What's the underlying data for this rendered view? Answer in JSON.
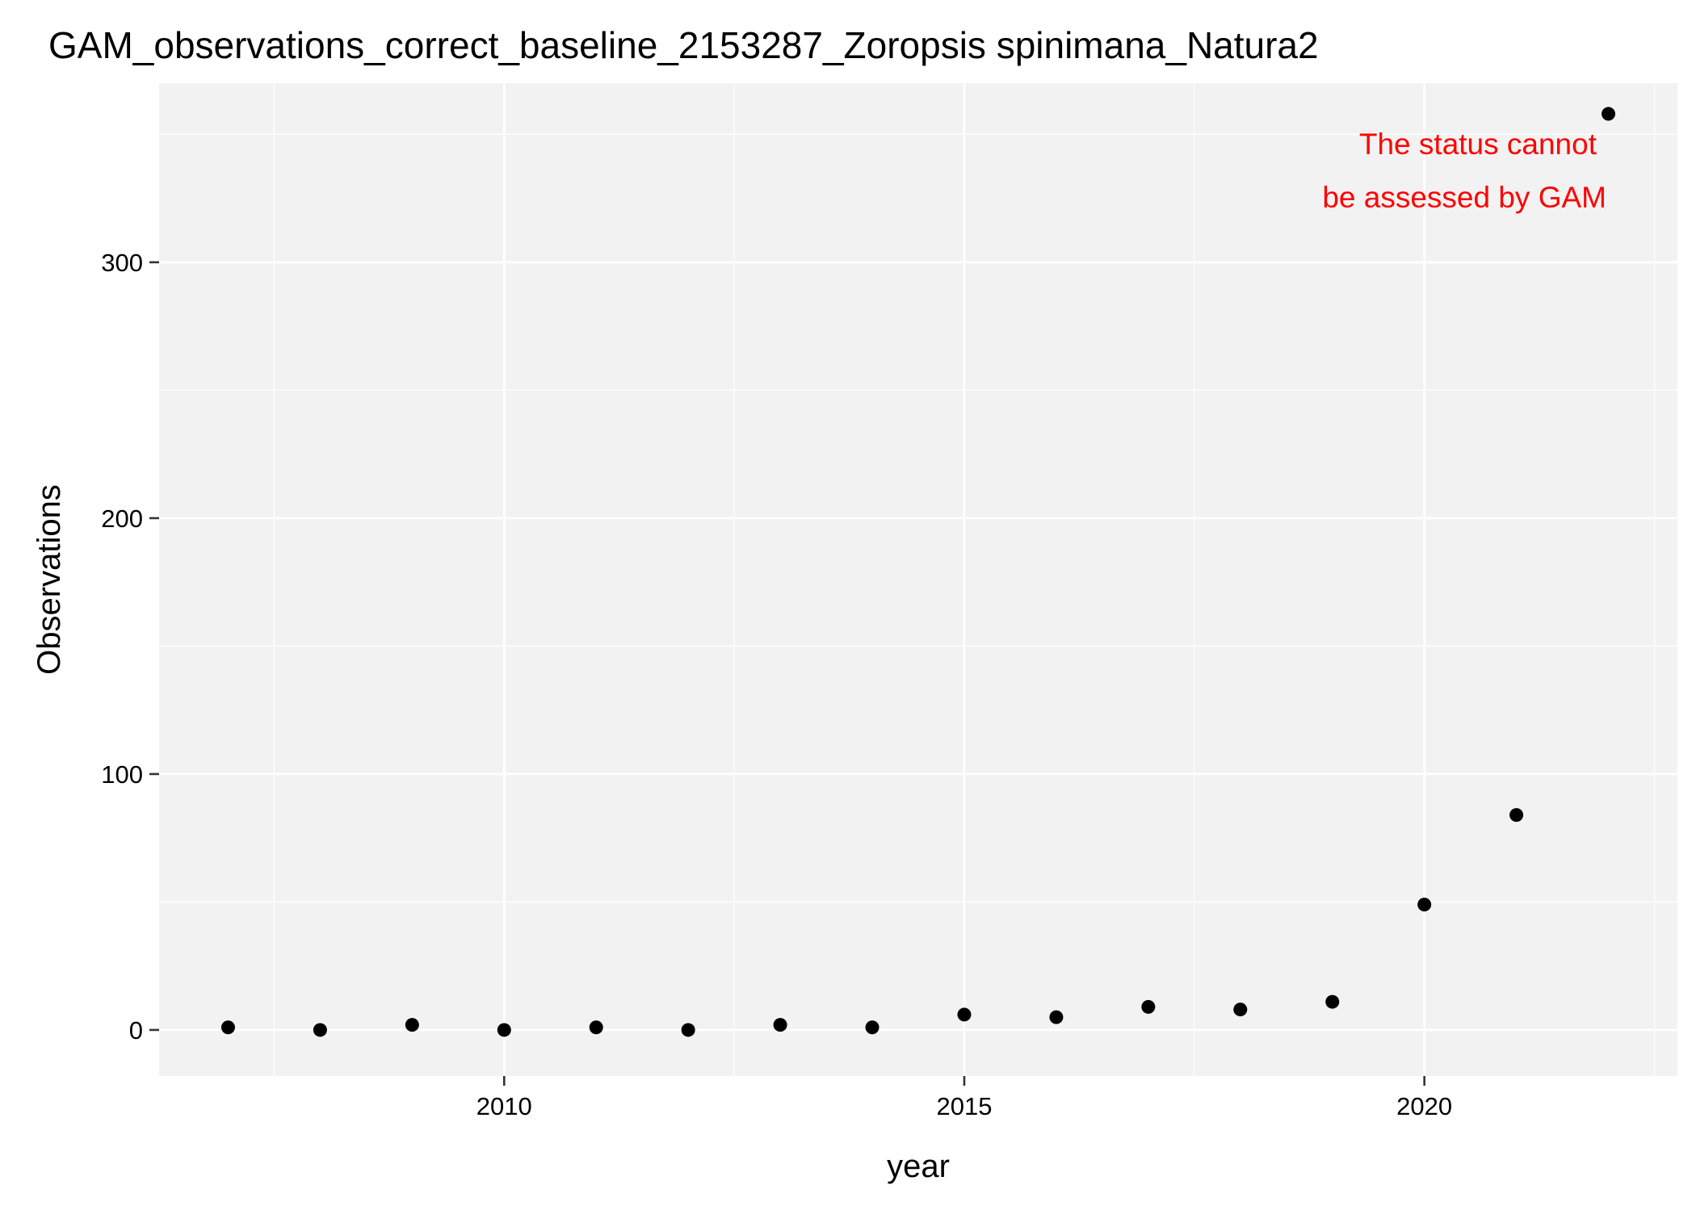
{
  "chart_data": {
    "type": "scatter",
    "title": "GAM_observations_correct_baseline_2153287_Zoropsis spinimana_Natura2",
    "xlabel": "year",
    "ylabel": "Observations",
    "xlim": [
      2006.25,
      2022.75
    ],
    "ylim": [
      -18,
      370
    ],
    "x_ticks": [
      2010,
      2015,
      2020
    ],
    "x_tick_labels": [
      "2010",
      "2015",
      "2020"
    ],
    "y_ticks": [
      0,
      100,
      200,
      300
    ],
    "y_tick_labels": [
      "0",
      "100",
      "200",
      "300"
    ],
    "grid": true,
    "legend": "none",
    "colors": {
      "panel": "#f2f2f2",
      "grid": "#ffffff",
      "point": "#000000",
      "annotation": "#ff0000"
    },
    "x": [
      2007,
      2008,
      2009,
      2010,
      2011,
      2012,
      2013,
      2014,
      2015,
      2016,
      2017,
      2018,
      2019,
      2020,
      2021,
      2022
    ],
    "y": [
      1,
      0,
      2,
      0,
      1,
      0,
      2,
      1,
      6,
      5,
      9,
      8,
      11,
      49,
      84,
      358
    ],
    "annotation": {
      "lines": [
        "The status cannot",
        "be assessed by GAM"
      ]
    }
  }
}
